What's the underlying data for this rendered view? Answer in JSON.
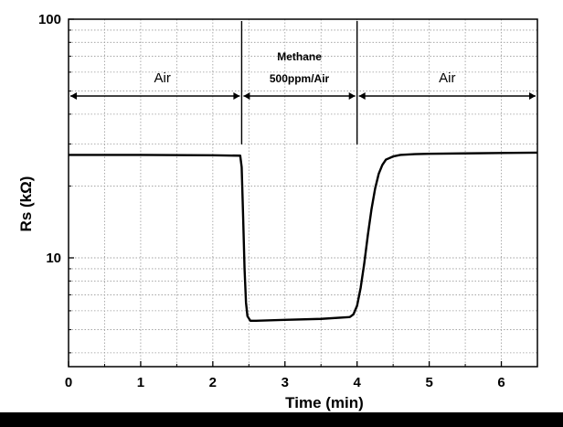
{
  "chart_data": {
    "type": "line",
    "title": "",
    "xlabel": "Time (min)",
    "ylabel": "Rs (kΩ)",
    "xlim": [
      0,
      6.5
    ],
    "ylim": [
      3.5,
      100
    ],
    "yscale": "log",
    "x_ticks": [
      0,
      1,
      2,
      3,
      4,
      5,
      6
    ],
    "x_tick_labels": [
      "0",
      "1",
      "2",
      "3",
      "4",
      "5",
      "6"
    ],
    "y_ticks": [
      10,
      100
    ],
    "y_tick_labels": [
      "10",
      "100"
    ],
    "grid": true,
    "series": [
      {
        "name": "Rs",
        "x": [
          0,
          1.0,
          2.0,
          2.38,
          2.4,
          2.42,
          2.44,
          2.46,
          2.48,
          2.52,
          2.6,
          3.0,
          3.5,
          3.9,
          3.95,
          4.0,
          4.05,
          4.1,
          4.15,
          4.2,
          4.25,
          4.3,
          4.35,
          4.4,
          4.5,
          4.6,
          4.8,
          5.0,
          5.5,
          6.0,
          6.5
        ],
        "y": [
          27.0,
          27.0,
          26.9,
          26.8,
          24.0,
          15.0,
          9.0,
          6.5,
          5.7,
          5.45,
          5.45,
          5.5,
          5.55,
          5.65,
          5.8,
          6.3,
          7.5,
          9.5,
          12.5,
          16.0,
          19.5,
          22.5,
          24.5,
          25.8,
          26.6,
          27.0,
          27.2,
          27.3,
          27.4,
          27.5,
          27.6
        ]
      }
    ],
    "phases": [
      {
        "label": "Air",
        "x_start": 0,
        "x_end": 2.4
      },
      {
        "label_line1": "Methane",
        "label_line2": "500ppm/Air",
        "x_start": 2.4,
        "x_end": 4.0
      },
      {
        "label": "Air",
        "x_start": 4.0,
        "x_end": 6.5
      }
    ]
  }
}
